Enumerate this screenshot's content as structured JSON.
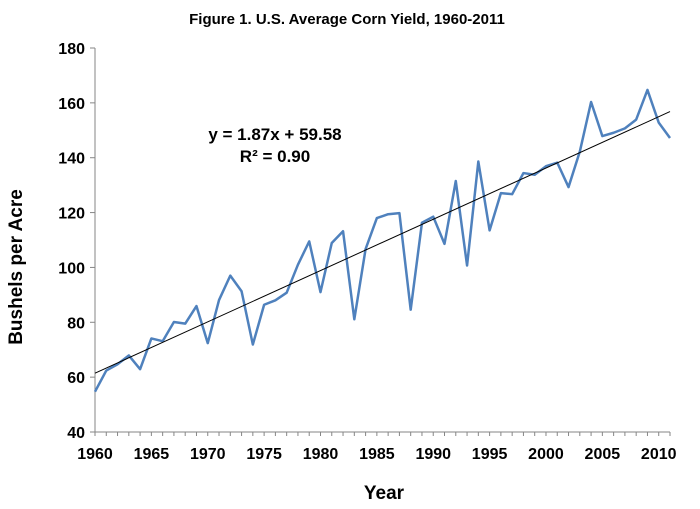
{
  "chart_data": {
    "type": "line",
    "title": "Figure 1. U.S. Average Corn Yield, 1960-2011",
    "xlabel": "Year",
    "ylabel": "Bushels per Acre",
    "xlim": [
      1960,
      2011
    ],
    "ylim": [
      40,
      180
    ],
    "x_ticks": [
      "1960",
      "1965",
      "1970",
      "1975",
      "1980",
      "1985",
      "1990",
      "1995",
      "2000",
      "2005",
      "2010"
    ],
    "y_ticks": [
      "40",
      "60",
      "80",
      "100",
      "120",
      "140",
      "160",
      "180"
    ],
    "grid": false,
    "legend": "none",
    "series": [
      {
        "color": "#4f81bd",
        "x": [
          1960,
          1961,
          1962,
          1963,
          1964,
          1965,
          1966,
          1967,
          1968,
          1969,
          1970,
          1971,
          1972,
          1973,
          1974,
          1975,
          1976,
          1977,
          1978,
          1979,
          1980,
          1981,
          1982,
          1983,
          1984,
          1985,
          1986,
          1987,
          1988,
          1989,
          1990,
          1991,
          1992,
          1993,
          1994,
          1995,
          1996,
          1997,
          1998,
          1999,
          2000,
          2001,
          2002,
          2003,
          2004,
          2005,
          2006,
          2007,
          2008,
          2009,
          2010,
          2011
        ],
        "y": [
          54.7,
          62.4,
          64.7,
          67.9,
          62.9,
          74.1,
          73.1,
          80.1,
          79.5,
          85.9,
          72.4,
          88.1,
          97.0,
          91.3,
          71.9,
          86.4,
          88.0,
          90.8,
          101.0,
          109.5,
          91.0,
          108.9,
          113.2,
          81.1,
          106.7,
          118.0,
          119.4,
          119.8,
          84.6,
          116.3,
          118.5,
          108.6,
          131.5,
          100.7,
          138.6,
          113.5,
          127.1,
          126.7,
          134.4,
          133.8,
          136.9,
          138.2,
          129.3,
          142.2,
          160.3,
          147.9,
          149.1,
          150.7,
          153.9,
          164.7,
          152.8,
          147.2
        ]
      }
    ],
    "trendline": {
      "color": "#000000",
      "slope": 1.87,
      "intercept": 59.58,
      "equation": "y = 1.87x + 59.58",
      "r_squared": "R² = 0.90"
    }
  }
}
